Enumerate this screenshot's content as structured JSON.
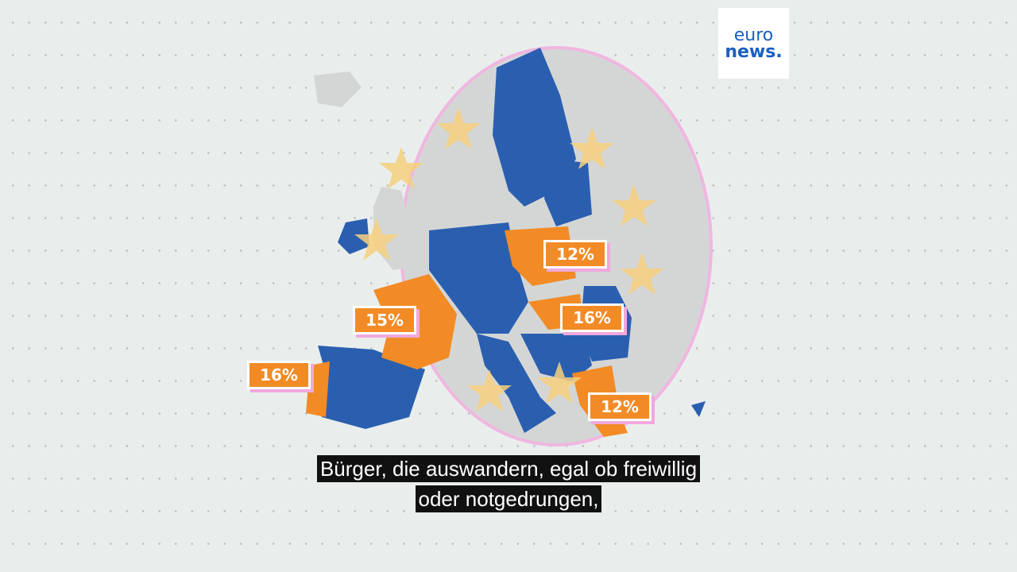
{
  "logo": {
    "line1": "euro",
    "line2": "news."
  },
  "map": {
    "labels": [
      "12%",
      "16%",
      "15%",
      "16%",
      "12%"
    ]
  },
  "subtitles": [
    "Bürger, die auswandern, egal ob freiwillig",
    "oder notgedrungen,"
  ]
}
